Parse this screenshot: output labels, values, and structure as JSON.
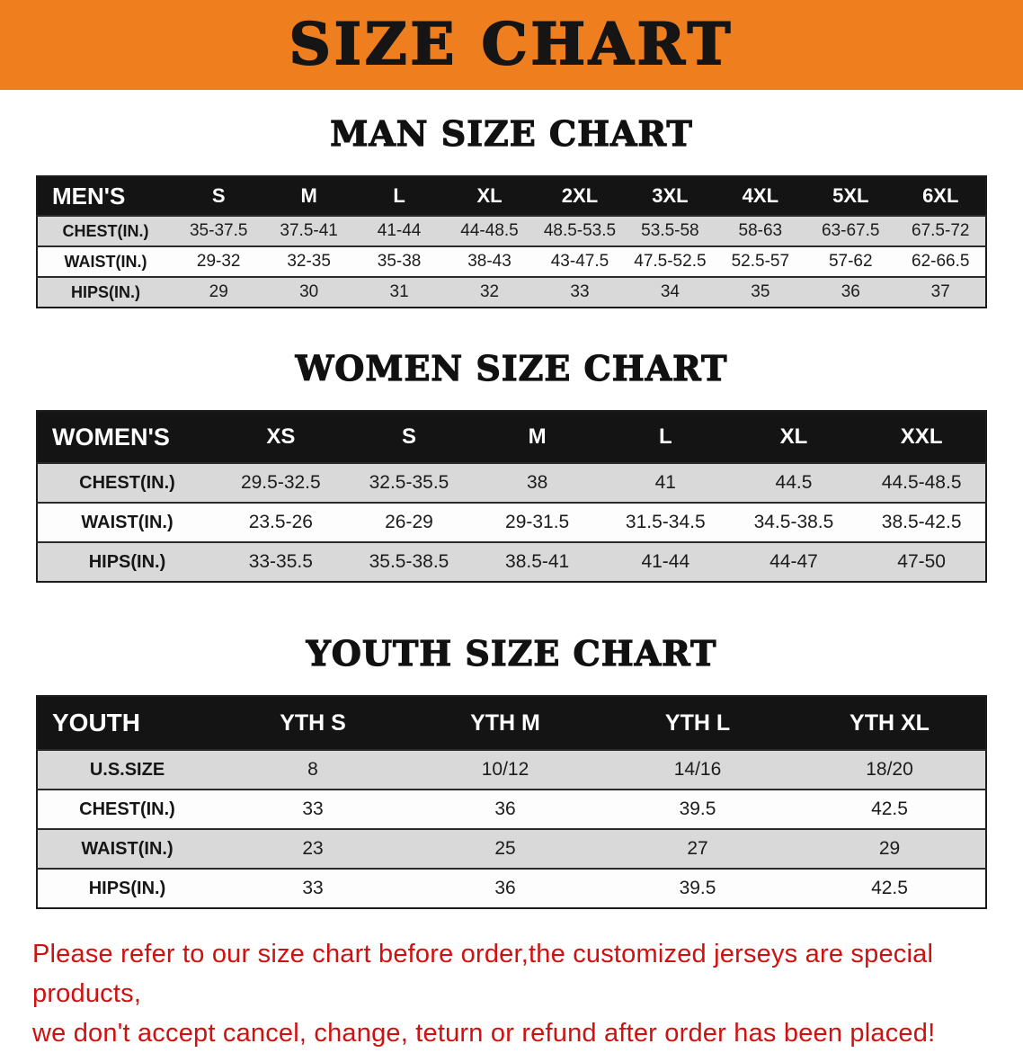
{
  "banner": {
    "title": "SIZE CHART",
    "background_color": "#ef7e1e",
    "text_color": "#151515"
  },
  "sections": [
    {
      "title": "MAN SIZE CHART",
      "table": {
        "header": [
          "MEN'S",
          "S",
          "M",
          "L",
          "XL",
          "2XL",
          "3XL",
          "4XL",
          "5XL",
          "6XL"
        ],
        "rows": [
          {
            "label": "CHEST(IN.)",
            "values": [
              "35-37.5",
              "37.5-41",
              "41-44",
              "44-48.5",
              "48.5-53.5",
              "53.5-58",
              "58-63",
              "63-67.5",
              "67.5-72"
            ]
          },
          {
            "label": "WAIST(IN.)",
            "values": [
              "29-32",
              "32-35",
              "35-38",
              "38-43",
              "43-47.5",
              "47.5-52.5",
              "52.5-57",
              "57-62",
              "62-66.5"
            ]
          },
          {
            "label": "HIPS(IN.)",
            "values": [
              "29",
              "30",
              "31",
              "32",
              "33",
              "34",
              "35",
              "36",
              "37"
            ]
          }
        ]
      }
    },
    {
      "title": "WOMEN SIZE CHART",
      "table": {
        "header": [
          "WOMEN'S",
          "XS",
          "S",
          "M",
          "L",
          "XL",
          "XXL"
        ],
        "rows": [
          {
            "label": "CHEST(IN.)",
            "values": [
              "29.5-32.5",
              "32.5-35.5",
              "38",
              "41",
              "44.5",
              "44.5-48.5"
            ]
          },
          {
            "label": "WAIST(IN.)",
            "values": [
              "23.5-26",
              "26-29",
              "29-31.5",
              "31.5-34.5",
              "34.5-38.5",
              "38.5-42.5"
            ]
          },
          {
            "label": "HIPS(IN.)",
            "values": [
              "33-35.5",
              "35.5-38.5",
              "38.5-41",
              "41-44",
              "44-47",
              "47-50"
            ]
          }
        ]
      }
    },
    {
      "title": "YOUTH SIZE CHART",
      "table": {
        "header": [
          "YOUTH",
          "YTH S",
          "YTH M",
          "YTH L",
          "YTH XL"
        ],
        "rows": [
          {
            "label": "U.S.SIZE",
            "values": [
              "8",
              "10/12",
              "14/16",
              "18/20"
            ]
          },
          {
            "label": "CHEST(IN.)",
            "values": [
              "33",
              "36",
              "39.5",
              "42.5"
            ]
          },
          {
            "label": "WAIST(IN.)",
            "values": [
              "23",
              "25",
              "27",
              "29"
            ]
          },
          {
            "label": "HIPS(IN.)",
            "values": [
              "33",
              "36",
              "39.5",
              "42.5"
            ]
          }
        ]
      }
    }
  ],
  "footer": {
    "lines": [
      "Please refer to our size chart before order,the customized jerseys are special products,",
      "we don't accept cancel, change, teturn or refund after order has been placed!"
    ],
    "text_color": "#ce1212"
  },
  "colors": {
    "table_header_bg": "#141414",
    "stripe_gray": "#d9d9d9",
    "stripe_white": "#fdfdfd"
  }
}
